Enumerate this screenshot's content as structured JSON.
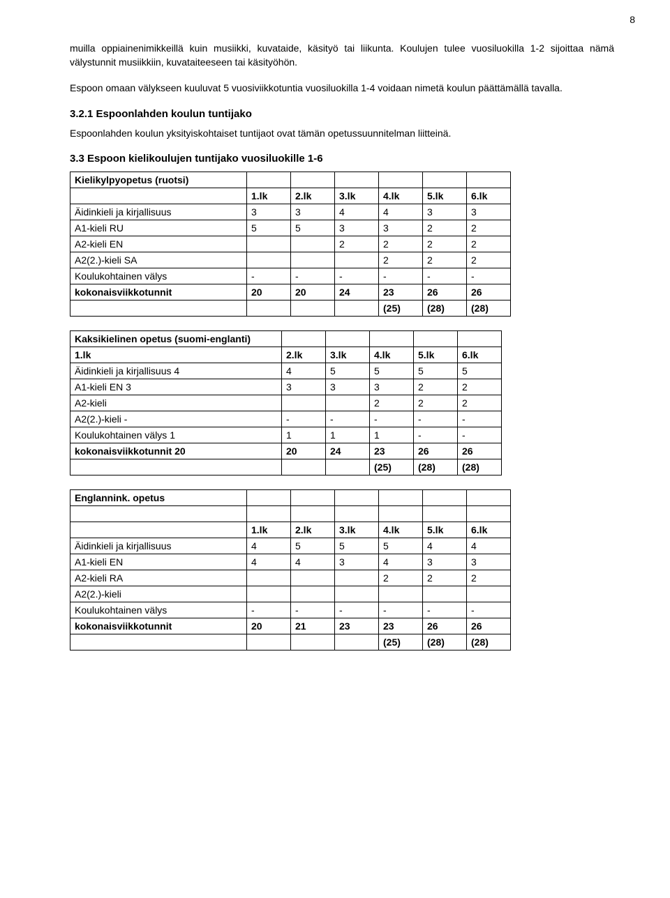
{
  "page_number": "8",
  "para1": "muilla oppiainenimikkeillä kuin musiikki, kuvataide, käsityö tai liikunta. Koulujen tulee vuosiluokilla 1-2 sijoittaa nämä välystunnit musiikkiin, kuvataiteeseen tai käsityöhön.",
  "para2": "Espoon omaan välykseen kuuluvat 5 vuosiviikkotuntia vuosiluokilla 1-4 voidaan nimetä koulun päättämällä tavalla.",
  "sect1_title": "3.2.1 Espoonlahden koulun tuntijako",
  "sect1_body": "Espoonlahden koulun yksityiskohtaiset tuntijaot ovat tämän opetussuunnitelman liitteinä.",
  "sect2_title": "3.3 Espoon kielikoulujen tuntijako vuosiluokille 1-6",
  "table1": {
    "title": "Kielikylpyopetus (ruotsi)",
    "headers": [
      "",
      "1.lk",
      "2.lk",
      "3.lk",
      "4.lk",
      "5.lk",
      "6.lk"
    ],
    "rows": [
      {
        "label": "Äidinkieli ja kirjallisuus",
        "v": [
          "3",
          "3",
          "4",
          "4",
          "3",
          "3"
        ]
      },
      {
        "label": "A1-kieli RU",
        "v": [
          "5",
          "5",
          "3",
          "3",
          "2",
          "2"
        ]
      },
      {
        "label": "A2-kieli EN",
        "v": [
          "",
          "",
          "2",
          "2",
          "2",
          "2"
        ]
      },
      {
        "label": "A2(2.)-kieli SA",
        "v": [
          "",
          "",
          "",
          "2",
          "2",
          "2"
        ]
      },
      {
        "label": "Koulukohtainen välys",
        "v": [
          "-",
          "-",
          "-",
          "-",
          "-",
          "-"
        ]
      },
      {
        "label": "kokonaisviikkotunnit",
        "v": [
          "20",
          "20",
          "24",
          "23",
          "26",
          "26"
        ],
        "bold": true
      },
      {
        "label": "",
        "v": [
          "",
          "",
          "",
          "(25)",
          "(28)",
          "(28)"
        ],
        "bold": true
      }
    ]
  },
  "table2": {
    "title": "Kaksikielinen opetus (suomi-englanti)",
    "headers": [
      "1.lk",
      "2.lk",
      "3.lk",
      "4.lk",
      "5.lk",
      "6.lk"
    ],
    "rows": [
      {
        "label": "Äidinkieli ja kirjallisuus 4",
        "v": [
          "4",
          "5",
          "5",
          "5",
          "5"
        ]
      },
      {
        "label": "A1-kieli EN 3",
        "v": [
          "3",
          "3",
          "3",
          "2",
          "2"
        ]
      },
      {
        "label": "A2-kieli",
        "v": [
          "",
          "",
          "2",
          "2",
          "2"
        ]
      },
      {
        "label": "A2(2.)-kieli -",
        "v": [
          "-",
          "-",
          "-",
          "-",
          "-"
        ]
      },
      {
        "label": "Koulukohtainen välys 1",
        "v": [
          "1",
          "1",
          "1",
          "-",
          "-"
        ]
      },
      {
        "label": "kokonaisviikkotunnit 20",
        "v": [
          "20",
          "24",
          "23",
          "26",
          "26"
        ],
        "bold": true
      },
      {
        "label": "",
        "v": [
          "",
          "",
          "(25)",
          "(28)",
          "(28)"
        ],
        "bold": true
      }
    ]
  },
  "table3": {
    "title": "Englannink. opetus",
    "headers": [
      "",
      "1.lk",
      "2.lk",
      "3.lk",
      "4.lk",
      "5.lk",
      "6.lk"
    ],
    "rows": [
      {
        "label": "Äidinkieli ja kirjallisuus",
        "v": [
          "4",
          "5",
          "5",
          "5",
          "4",
          "4"
        ]
      },
      {
        "label": "A1-kieli EN",
        "v": [
          "4",
          "4",
          "3",
          "4",
          "3",
          "3"
        ]
      },
      {
        "label": "A2-kieli RA",
        "v": [
          "",
          "",
          "",
          "2",
          "2",
          "2"
        ]
      },
      {
        "label": "A2(2.)-kieli",
        "v": [
          "",
          "",
          "",
          "",
          "",
          ""
        ]
      },
      {
        "label": "Koulukohtainen välys",
        "v": [
          "-",
          "-",
          "-",
          "-",
          "-",
          "-"
        ]
      },
      {
        "label": "kokonaisviikkotunnit",
        "v": [
          "20",
          "21",
          "23",
          "23",
          "26",
          "26"
        ],
        "bold": true
      },
      {
        "label": "",
        "v": [
          "",
          "",
          "",
          "(25)",
          "(28)",
          "(28)"
        ],
        "bold": true
      }
    ]
  }
}
